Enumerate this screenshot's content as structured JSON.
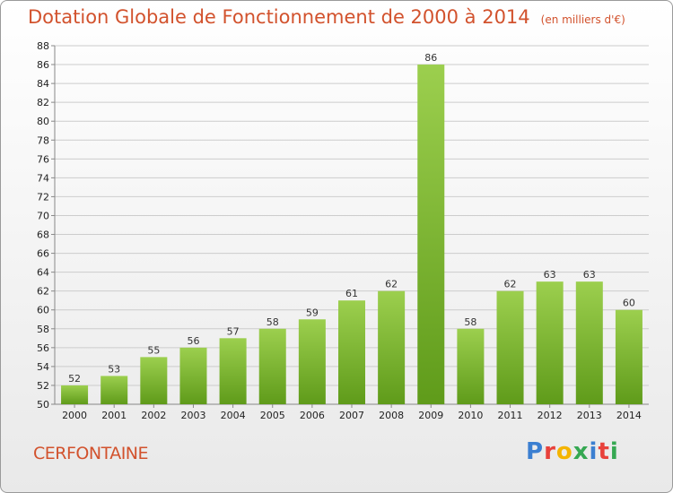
{
  "header": {
    "title": "Dotation Globale de Fonctionnement de 2000 à 2014",
    "subtitle": "(en milliers d'€)"
  },
  "footer": {
    "commune": "CERFONTAINE",
    "logo_letters": [
      "P",
      "r",
      "o",
      "x",
      "i",
      "t",
      "i"
    ]
  },
  "colors": {
    "title": "#d2522d",
    "bar_top": "#9ccf4e",
    "bar_bottom": "#5f9b1a",
    "grid": "#cccccc",
    "logo": [
      "#3b7fd1",
      "#e8413b",
      "#f4b400",
      "#36a852",
      "#3b7fd1",
      "#e8413b",
      "#36a852"
    ]
  },
  "chart_data": {
    "type": "bar",
    "title": "Dotation Globale de Fonctionnement de 2000 à 2014",
    "subtitle": "(en milliers d'€)",
    "xlabel": "",
    "ylabel": "",
    "categories": [
      "2000",
      "2001",
      "2002",
      "2003",
      "2004",
      "2005",
      "2006",
      "2007",
      "2008",
      "2009",
      "2010",
      "2011",
      "2012",
      "2013",
      "2014"
    ],
    "values": [
      52,
      53,
      55,
      56,
      57,
      58,
      59,
      61,
      62,
      86,
      58,
      62,
      63,
      63,
      60
    ],
    "ylim": [
      50,
      88
    ],
    "yticks": [
      50,
      52,
      54,
      56,
      58,
      60,
      62,
      64,
      66,
      68,
      70,
      72,
      74,
      76,
      78,
      80,
      82,
      84,
      86,
      88
    ],
    "grid": true,
    "legend": "none"
  }
}
